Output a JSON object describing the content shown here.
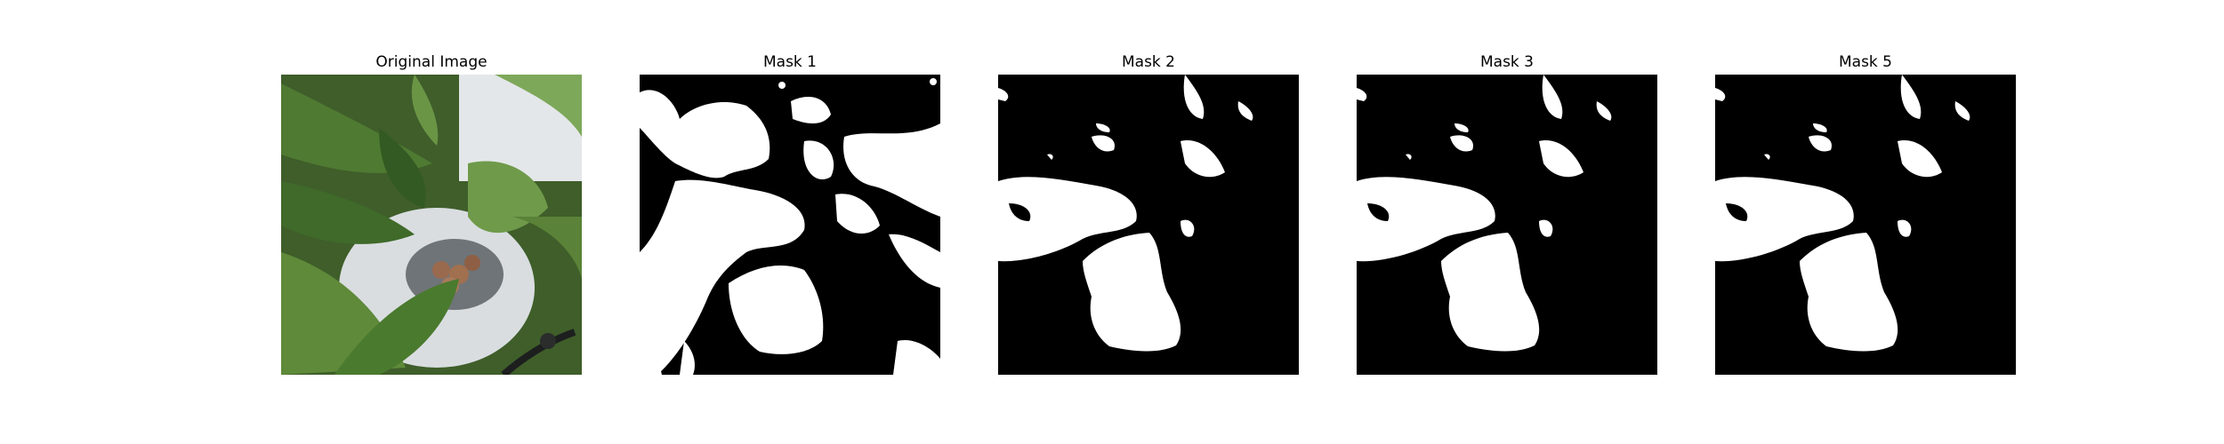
{
  "panels": [
    {
      "title": "Original Image",
      "kind": "photo"
    },
    {
      "title": "Mask 1",
      "kind": "mask"
    },
    {
      "title": "Mask 2",
      "kind": "mask"
    },
    {
      "title": "Mask 3",
      "kind": "mask"
    },
    {
      "title": "Mask 5",
      "kind": "mask"
    }
  ],
  "colors": {
    "background": "#ffffff",
    "mask_background": "#000000",
    "mask_foreground": "#ffffff",
    "leaf_dark": "#2f4f1f",
    "leaf_mid": "#4f7a32",
    "leaf_light": "#7da85a",
    "pot": "#d9dde0",
    "pebbles": "#9a6a4f"
  }
}
